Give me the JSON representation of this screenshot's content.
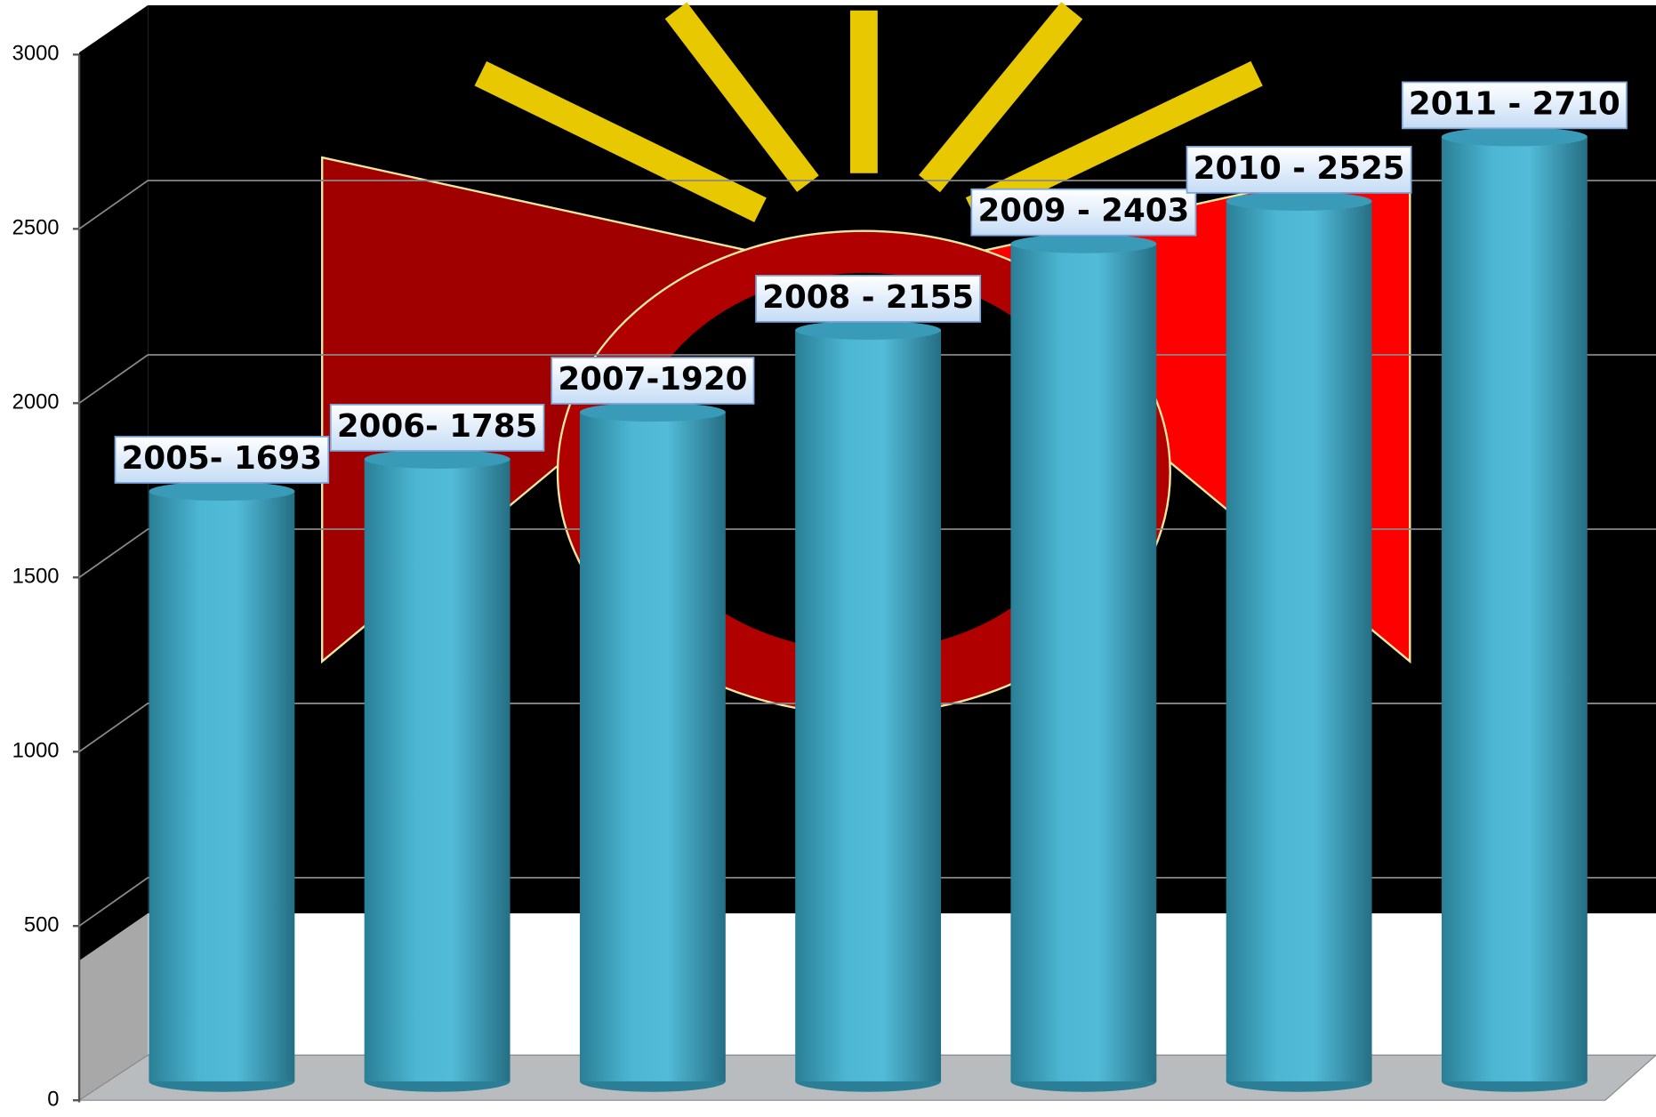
{
  "chart_data": {
    "type": "bar",
    "values": [
      1693,
      1785,
      1920,
      2155,
      2403,
      2525,
      2710
    ],
    "value_labels": [
      "2005- 1693",
      "2006- 1785",
      "2007-1920",
      "2008 - 2155",
      "2009 - 2403",
      "2010 - 2525",
      "2011 - 2710"
    ],
    "color": "#4ab3d1",
    "ylim": [
      0,
      3000
    ],
    "yticks": [
      0,
      500,
      1000,
      1500,
      2000,
      2500,
      3000
    ],
    "grid": true
  }
}
